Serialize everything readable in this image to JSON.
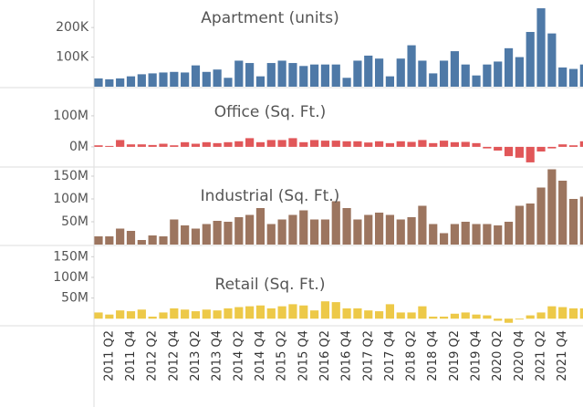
{
  "chart_data": [
    {
      "type": "bar",
      "title": "Apartment (units)",
      "color": "#4e79a7",
      "values": [
        28000,
        25000,
        28000,
        35000,
        42000,
        45000,
        48000,
        50000,
        48000,
        72000,
        50000,
        58000,
        30000,
        88000,
        80000,
        35000,
        80000,
        88000,
        80000,
        70000,
        75000,
        75000,
        75000,
        30000,
        88000,
        105000,
        95000,
        35000,
        95000,
        140000,
        88000,
        45000,
        88000,
        120000,
        75000,
        38000,
        75000,
        85000,
        130000,
        100000,
        185000,
        265000,
        180000,
        65000,
        60000,
        75000
      ],
      "ylim": [
        0,
        293000
      ],
      "yticks": [
        {
          "value": 100000,
          "label": "100K"
        },
        {
          "value": 200000,
          "label": "200K"
        }
      ]
    },
    {
      "type": "bar",
      "title": "Office (Sq. Ft.)",
      "color": "#e15759",
      "values": [
        5000000,
        3000000,
        22000000,
        8000000,
        8000000,
        6000000,
        10000000,
        5000000,
        15000000,
        10000000,
        15000000,
        12000000,
        15000000,
        18000000,
        28000000,
        15000000,
        22000000,
        22000000,
        28000000,
        15000000,
        22000000,
        20000000,
        20000000,
        18000000,
        18000000,
        14000000,
        18000000,
        12000000,
        18000000,
        16000000,
        22000000,
        12000000,
        20000000,
        15000000,
        16000000,
        12000000,
        -5000000,
        -12000000,
        -30000000,
        -35000000,
        -50000000,
        -15000000,
        -5000000,
        8000000,
        5000000,
        18000000
      ],
      "ylim": [
        -62000000,
        188000000
      ],
      "yticks": [
        {
          "value": 0,
          "label": "0M"
        },
        {
          "value": 100000000,
          "label": "100M"
        }
      ]
    },
    {
      "type": "bar",
      "title": "Industrial (Sq. Ft.)",
      "color": "#9c755f",
      "values": [
        18000000,
        18000000,
        35000000,
        30000000,
        10000000,
        20000000,
        18000000,
        55000000,
        42000000,
        35000000,
        45000000,
        52000000,
        50000000,
        60000000,
        65000000,
        80000000,
        45000000,
        55000000,
        65000000,
        75000000,
        55000000,
        55000000,
        95000000,
        80000000,
        55000000,
        65000000,
        70000000,
        65000000,
        55000000,
        60000000,
        85000000,
        45000000,
        25000000,
        45000000,
        50000000,
        45000000,
        45000000,
        42000000,
        50000000,
        85000000,
        90000000,
        125000000,
        165000000,
        140000000,
        100000000,
        105000000
      ],
      "ylim": [
        0,
        168000000
      ],
      "yticks": [
        {
          "value": 50000000,
          "label": "50M"
        },
        {
          "value": 100000000,
          "label": "100M"
        },
        {
          "value": 150000000,
          "label": "150M"
        }
      ]
    },
    {
      "type": "bar",
      "title": "Retail (Sq. Ft.)",
      "color": "#edc948",
      "categories": [
        null,
        "2011 Q2",
        null,
        "2011 Q4",
        null,
        "2012 Q2",
        null,
        "2012 Q4",
        null,
        "2013 Q2",
        null,
        "2013 Q4",
        null,
        "2014 Q2",
        null,
        "2014 Q4",
        null,
        "2015 Q2",
        null,
        "2015 Q4",
        null,
        "2016 Q2",
        null,
        "2016 Q4",
        null,
        "2017 Q2",
        null,
        "2017 Q4",
        null,
        "2018 Q2",
        null,
        "2018 Q4",
        null,
        "2019 Q2",
        null,
        "2019 Q4",
        null,
        "2020 Q2",
        null,
        "2020 Q4",
        null,
        "2021 Q2",
        null,
        "2021 Q4",
        null,
        null
      ],
      "values": [
        15000000,
        10000000,
        20000000,
        18000000,
        22000000,
        5000000,
        15000000,
        25000000,
        22000000,
        18000000,
        22000000,
        20000000,
        25000000,
        28000000,
        30000000,
        32000000,
        25000000,
        30000000,
        35000000,
        32000000,
        20000000,
        42000000,
        40000000,
        25000000,
        25000000,
        20000000,
        18000000,
        35000000,
        15000000,
        15000000,
        30000000,
        5000000,
        5000000,
        12000000,
        15000000,
        10000000,
        8000000,
        -5000000,
        -10000000,
        -2000000,
        8000000,
        15000000,
        30000000,
        28000000,
        25000000,
        25000000
      ],
      "ylim": [
        -15000000,
        175000000
      ],
      "yticks": [
        {
          "value": 50000000,
          "label": "50M"
        },
        {
          "value": 100000000,
          "label": "100M"
        },
        {
          "value": 150000000,
          "label": "150M"
        }
      ]
    }
  ]
}
